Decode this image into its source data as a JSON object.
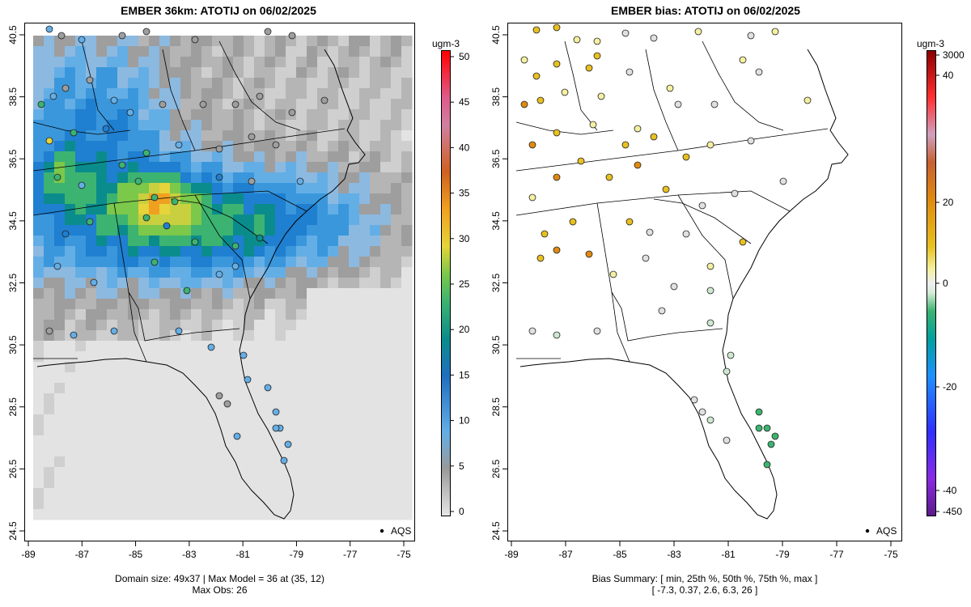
{
  "left_panel": {
    "title": "EMBER 36km: ATOTIJ on 06/02/2025",
    "caption_line1": "Domain size: 49x37 | Max Model = 36 at (35, 12)",
    "caption_line2": "Max Obs: 26",
    "legend_label": "AQS",
    "colorbar_unit": "ugm-3",
    "colorbar_ticks": [
      "0",
      "5",
      "10",
      "15",
      "20",
      "25",
      "30",
      "35",
      "40",
      "45",
      "50"
    ],
    "x_ticks": [
      "-89",
      "-87",
      "-85",
      "-83",
      "-81",
      "-79",
      "-77",
      "-75"
    ],
    "y_ticks": [
      "24.5",
      "26.5",
      "28.5",
      "30.5",
      "32.5",
      "34.5",
      "36.5",
      "38.5",
      "40.5"
    ]
  },
  "right_panel": {
    "title": "EMBER bias: ATOTIJ on 06/02/2025",
    "caption_line1": "Bias Summary: [ min, 25th %, 50th %, 75th %, max ]",
    "caption_line2": "[ -7.3,   0.37,   2.6,   6.3,   26 ]",
    "legend_label": "AQS",
    "colorbar_unit": "ugm-3",
    "colorbar_ticks": [
      "3000",
      "40",
      "20",
      "0",
      "-20",
      "-40",
      "-450"
    ],
    "x_ticks": [
      "-89",
      "-87",
      "-85",
      "-83",
      "-81",
      "-79",
      "-77",
      "-75"
    ],
    "y_ticks": [
      "24.5",
      "26.5",
      "28.5",
      "30.5",
      "32.5",
      "34.5",
      "36.5",
      "38.5",
      "40.5"
    ]
  },
  "colors": {
    "concentration_scale": [
      "#e6e6e6",
      "#c8c8c8",
      "#a9a9a9",
      "#64aee6",
      "#1f7fd0",
      "#0b8c8c",
      "#3cb371",
      "#7cc84a",
      "#e6d43a",
      "#f0a020",
      "#e06a2a",
      "#e05a8a",
      "#ff0000"
    ],
    "bias_scale": [
      "#4b0082",
      "#8a2be2",
      "#0000ff",
      "#1e90ff",
      "#008b8b",
      "#3cb371",
      "#d0e8d0",
      "#e0e0e0",
      "#f5f0a0",
      "#e8c020",
      "#e08a10",
      "#d06020",
      "#d0a0c0",
      "#ff0000",
      "#8b0000"
    ]
  }
}
